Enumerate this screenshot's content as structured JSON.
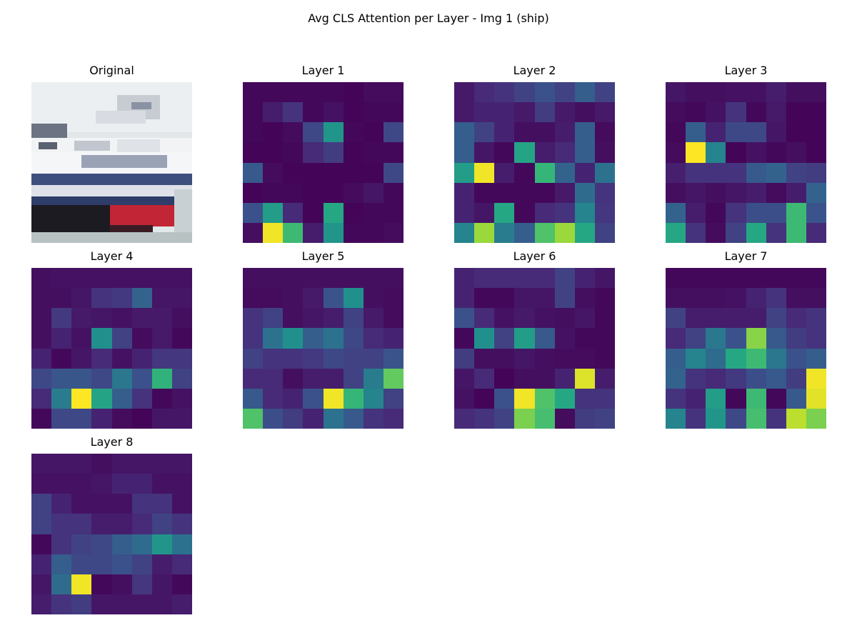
{
  "figure_title": "Avg CLS Attention per Layer - Img 1 (ship)",
  "original": {
    "title": "Original",
    "description": "pixelated photo of a white ship with blue stripes and red bow on a light sky background"
  },
  "chart_data": {
    "type": "heatmap",
    "colormap": "viridis",
    "grid_size": [
      8,
      8
    ],
    "value_range": [
      0,
      1
    ],
    "panels": [
      {
        "title": "Layer 1",
        "values": [
          [
            0.02,
            0.02,
            0.02,
            0.02,
            0.02,
            0.01,
            0.03,
            0.03
          ],
          [
            0.02,
            0.08,
            0.15,
            0.02,
            0.05,
            0.01,
            0.02,
            0.02
          ],
          [
            0.02,
            0.01,
            0.03,
            0.22,
            0.52,
            0.02,
            0.01,
            0.22
          ],
          [
            0.01,
            0.01,
            0.02,
            0.12,
            0.18,
            0.01,
            0.02,
            0.02
          ],
          [
            0.28,
            0.03,
            0.01,
            0.01,
            0.01,
            0.01,
            0.01,
            0.22
          ],
          [
            0.01,
            0.02,
            0.02,
            0.01,
            0.01,
            0.03,
            0.06,
            0.02
          ],
          [
            0.25,
            0.55,
            0.12,
            0.01,
            0.6,
            0.01,
            0.02,
            0.02
          ],
          [
            0.04,
            0.98,
            0.68,
            0.08,
            0.52,
            0.02,
            0.02,
            0.03
          ]
        ]
      },
      {
        "title": "Layer 2",
        "values": [
          [
            0.07,
            0.12,
            0.15,
            0.2,
            0.25,
            0.2,
            0.3,
            0.2
          ],
          [
            0.07,
            0.1,
            0.1,
            0.07,
            0.18,
            0.07,
            0.04,
            0.07
          ],
          [
            0.3,
            0.2,
            0.1,
            0.04,
            0.04,
            0.08,
            0.3,
            0.03
          ],
          [
            0.3,
            0.06,
            0.02,
            0.58,
            0.08,
            0.12,
            0.3,
            0.04
          ],
          [
            0.55,
            0.98,
            0.08,
            0.02,
            0.66,
            0.32,
            0.1,
            0.38
          ],
          [
            0.1,
            0.02,
            0.02,
            0.02,
            0.02,
            0.07,
            0.35,
            0.15
          ],
          [
            0.1,
            0.06,
            0.6,
            0.02,
            0.12,
            0.15,
            0.45,
            0.16
          ],
          [
            0.45,
            0.85,
            0.42,
            0.3,
            0.72,
            0.85,
            0.6,
            0.2
          ]
        ]
      },
      {
        "title": "Layer 3",
        "values": [
          [
            0.06,
            0.04,
            0.04,
            0.05,
            0.05,
            0.08,
            0.04,
            0.04
          ],
          [
            0.03,
            0.02,
            0.05,
            0.15,
            0.02,
            0.07,
            0.01,
            0.01
          ],
          [
            0.02,
            0.3,
            0.1,
            0.22,
            0.22,
            0.06,
            0.01,
            0.01
          ],
          [
            0.03,
            1.0,
            0.45,
            0.01,
            0.05,
            0.02,
            0.04,
            0.01
          ],
          [
            0.09,
            0.15,
            0.15,
            0.15,
            0.28,
            0.32,
            0.2,
            0.18
          ],
          [
            0.04,
            0.06,
            0.04,
            0.06,
            0.08,
            0.03,
            0.08,
            0.32
          ],
          [
            0.32,
            0.08,
            0.02,
            0.15,
            0.24,
            0.24,
            0.68,
            0.26
          ],
          [
            0.6,
            0.15,
            0.03,
            0.2,
            0.6,
            0.15,
            0.68,
            0.12
          ]
        ]
      },
      {
        "title": "Layer 4",
        "values": [
          [
            0.04,
            0.05,
            0.05,
            0.05,
            0.05,
            0.05,
            0.05,
            0.05
          ],
          [
            0.04,
            0.04,
            0.06,
            0.15,
            0.17,
            0.32,
            0.06,
            0.06
          ],
          [
            0.04,
            0.17,
            0.07,
            0.06,
            0.05,
            0.07,
            0.07,
            0.04
          ],
          [
            0.04,
            0.1,
            0.05,
            0.5,
            0.2,
            0.03,
            0.07,
            0.02
          ],
          [
            0.1,
            0.02,
            0.06,
            0.12,
            0.05,
            0.1,
            0.16,
            0.16
          ],
          [
            0.22,
            0.27,
            0.27,
            0.22,
            0.4,
            0.25,
            0.65,
            0.2
          ],
          [
            0.12,
            0.42,
            1.0,
            0.58,
            0.3,
            0.15,
            0.02,
            0.05
          ],
          [
            0.02,
            0.22,
            0.22,
            0.1,
            0.03,
            0.01,
            0.06,
            0.06
          ]
        ]
      },
      {
        "title": "Layer 5",
        "values": [
          [
            0.04,
            0.04,
            0.04,
            0.04,
            0.04,
            0.04,
            0.04,
            0.04
          ],
          [
            0.03,
            0.03,
            0.04,
            0.07,
            0.26,
            0.5,
            0.04,
            0.03
          ],
          [
            0.15,
            0.2,
            0.04,
            0.06,
            0.08,
            0.2,
            0.07,
            0.03
          ],
          [
            0.15,
            0.38,
            0.5,
            0.3,
            0.38,
            0.22,
            0.12,
            0.1
          ],
          [
            0.2,
            0.15,
            0.15,
            0.17,
            0.22,
            0.2,
            0.2,
            0.26
          ],
          [
            0.12,
            0.12,
            0.04,
            0.08,
            0.08,
            0.2,
            0.42,
            0.76
          ],
          [
            0.28,
            0.12,
            0.1,
            0.25,
            0.98,
            0.66,
            0.45,
            0.2
          ],
          [
            0.72,
            0.24,
            0.18,
            0.1,
            0.38,
            0.28,
            0.15,
            0.12
          ]
        ]
      },
      {
        "title": "Layer 6",
        "values": [
          [
            0.1,
            0.12,
            0.12,
            0.12,
            0.12,
            0.2,
            0.1,
            0.06
          ],
          [
            0.1,
            0.02,
            0.02,
            0.06,
            0.06,
            0.2,
            0.04,
            0.02
          ],
          [
            0.25,
            0.12,
            0.05,
            0.07,
            0.05,
            0.04,
            0.06,
            0.02
          ],
          [
            0.02,
            0.5,
            0.2,
            0.55,
            0.28,
            0.05,
            0.02,
            0.02
          ],
          [
            0.18,
            0.04,
            0.04,
            0.06,
            0.04,
            0.03,
            0.03,
            0.02
          ],
          [
            0.06,
            0.12,
            0.01,
            0.04,
            0.04,
            0.1,
            0.95,
            0.08
          ],
          [
            0.05,
            0.01,
            0.25,
            0.98,
            0.72,
            0.6,
            0.15,
            0.15
          ],
          [
            0.12,
            0.15,
            0.2,
            0.8,
            0.7,
            0.03,
            0.18,
            0.2
          ]
        ]
      },
      {
        "title": "Layer 7",
        "values": [
          [
            0.02,
            0.02,
            0.02,
            0.02,
            0.02,
            0.02,
            0.02,
            0.02
          ],
          [
            0.04,
            0.04,
            0.04,
            0.05,
            0.1,
            0.15,
            0.04,
            0.04
          ],
          [
            0.2,
            0.08,
            0.08,
            0.08,
            0.08,
            0.2,
            0.12,
            0.15
          ],
          [
            0.12,
            0.2,
            0.4,
            0.25,
            0.82,
            0.28,
            0.18,
            0.15
          ],
          [
            0.3,
            0.45,
            0.35,
            0.6,
            0.68,
            0.4,
            0.25,
            0.3
          ],
          [
            0.32,
            0.15,
            0.12,
            0.17,
            0.24,
            0.28,
            0.18,
            0.98
          ],
          [
            0.15,
            0.1,
            0.55,
            0.02,
            0.68,
            0.02,
            0.28,
            0.96
          ],
          [
            0.45,
            0.15,
            0.52,
            0.22,
            0.7,
            0.15,
            0.9,
            0.8
          ]
        ]
      },
      {
        "title": "Layer 8",
        "values": [
          [
            0.06,
            0.06,
            0.06,
            0.04,
            0.06,
            0.06,
            0.06,
            0.06
          ],
          [
            0.05,
            0.05,
            0.05,
            0.06,
            0.1,
            0.1,
            0.05,
            0.05
          ],
          [
            0.2,
            0.1,
            0.05,
            0.05,
            0.05,
            0.15,
            0.15,
            0.05
          ],
          [
            0.2,
            0.15,
            0.15,
            0.08,
            0.08,
            0.12,
            0.2,
            0.15
          ],
          [
            0.02,
            0.15,
            0.2,
            0.22,
            0.3,
            0.35,
            0.52,
            0.38
          ],
          [
            0.1,
            0.3,
            0.22,
            0.22,
            0.25,
            0.2,
            0.08,
            0.12
          ],
          [
            0.06,
            0.35,
            0.98,
            0.02,
            0.04,
            0.16,
            0.06,
            0.02
          ],
          [
            0.08,
            0.15,
            0.18,
            0.06,
            0.06,
            0.06,
            0.06,
            0.08
          ]
        ]
      }
    ]
  }
}
